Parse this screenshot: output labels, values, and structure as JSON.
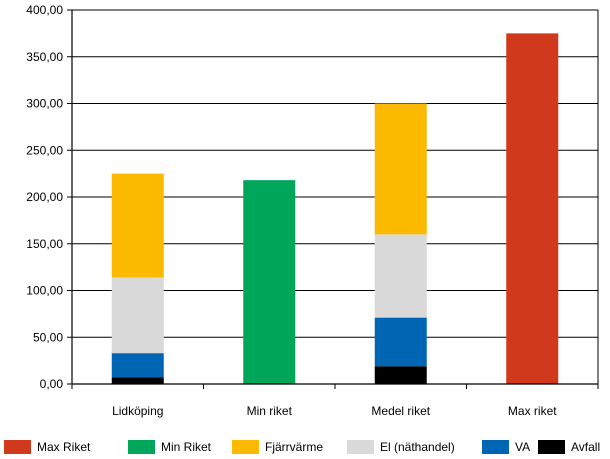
{
  "chart_data": {
    "type": "bar",
    "stacked": true,
    "categories": [
      "Lidköping",
      "Min riket",
      "Medel riket",
      "Max riket"
    ],
    "series": [
      {
        "name": "Avfall",
        "color": "#000000",
        "values": [
          7,
          0,
          19,
          0
        ]
      },
      {
        "name": "VA",
        "color": "#0066b3",
        "values": [
          26,
          0,
          52,
          0
        ]
      },
      {
        "name": "El (näthandel)",
        "color": "#d9d9d9",
        "values": [
          81,
          0,
          89,
          0
        ]
      },
      {
        "name": "Fjärrvärme",
        "color": "#fbb900",
        "values": [
          111,
          0,
          140,
          0
        ]
      },
      {
        "name": "Min Riket",
        "color": "#00a65a",
        "values": [
          0,
          218,
          0,
          0
        ]
      },
      {
        "name": "Max Riket",
        "color": "#d0391c",
        "values": [
          0,
          0,
          0,
          375
        ]
      }
    ],
    "ylim": [
      0,
      400
    ],
    "yticks": [
      "0,00",
      "50,00",
      "100,00",
      "150,00",
      "200,00",
      "250,00",
      "300,00",
      "350,00",
      "400,00"
    ],
    "ytick_values": [
      0,
      50,
      100,
      150,
      200,
      250,
      300,
      350,
      400
    ],
    "grid": true,
    "legend_position": "bottom",
    "legend_order": [
      "Max Riket",
      "Min Riket",
      "Fjärrvärme",
      "El (näthandel)",
      "VA",
      "Avfall"
    ]
  }
}
